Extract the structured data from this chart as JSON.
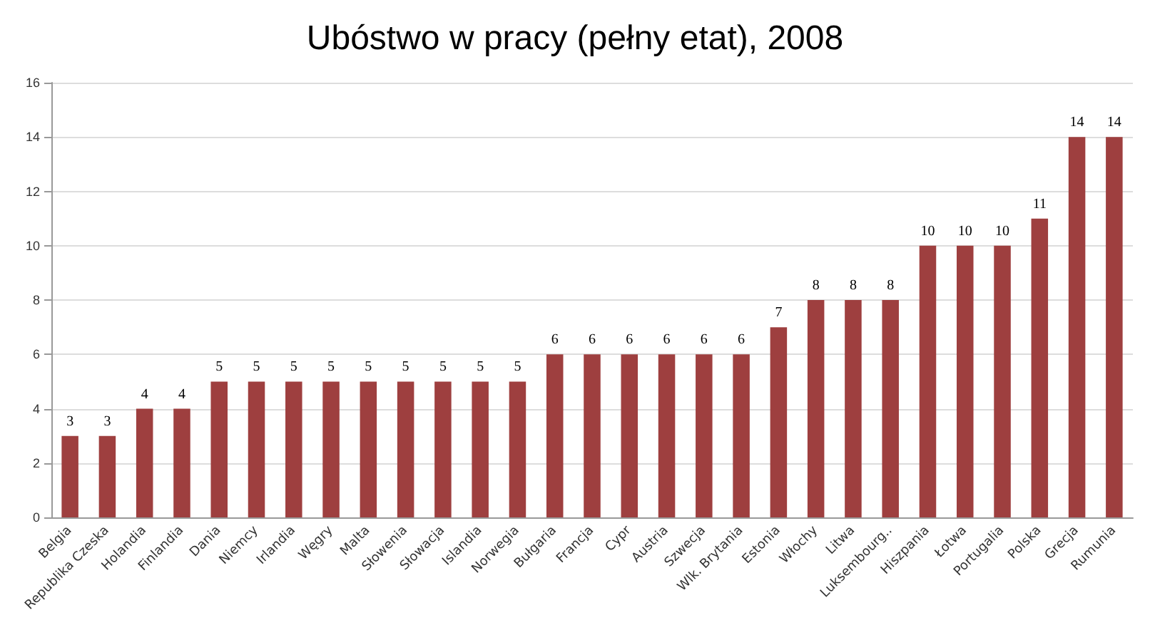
{
  "chart_data": {
    "type": "bar",
    "title": "Ubóstwo w pracy (pełny etat), 2008",
    "categories": [
      "Belgia",
      "Republika Czeska",
      "Holandia",
      "Finlandia",
      "Dania",
      "Niemcy",
      "Irlandia",
      "Węgry",
      "Malta",
      "Słowenia",
      "Słowacja",
      "Islandia",
      "Norwegia",
      "Bułgaria",
      "Francja",
      "Cypr",
      "Austria",
      "Szwecja",
      "Wlk. Brytania",
      "Estonia",
      "Włochy",
      "Litwa",
      "Luksembourg..",
      "Hiszpania",
      "Łotwa",
      "Portugalia",
      "Polska",
      "Grecja",
      "Rumunia"
    ],
    "values": [
      3,
      3,
      4,
      4,
      5,
      5,
      5,
      5,
      5,
      5,
      5,
      5,
      5,
      6,
      6,
      6,
      6,
      6,
      6,
      7,
      8,
      8,
      8,
      10,
      10,
      10,
      11,
      14,
      14
    ],
    "color": "#9e3f3f",
    "ylim": [
      0,
      16
    ],
    "yticks": [
      0,
      2,
      4,
      6,
      8,
      10,
      12,
      14,
      16
    ],
    "grid": "y",
    "data_labels": true
  }
}
